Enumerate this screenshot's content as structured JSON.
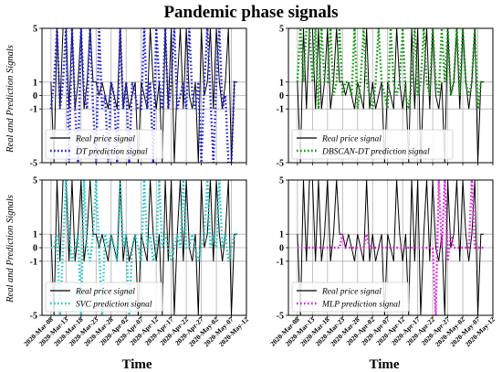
{
  "figure": {
    "title": "Pandemic phase signals",
    "ylabel": "Real and Prediction Signals",
    "xlabel": "Time"
  },
  "chart_data": {
    "type": "line",
    "x_dates": [
      "2020-03-08",
      "2020-03-09",
      "2020-03-10",
      "2020-03-11",
      "2020-03-12",
      "2020-03-13",
      "2020-03-14",
      "2020-03-15",
      "2020-03-16",
      "2020-03-17",
      "2020-03-18",
      "2020-03-19",
      "2020-03-20",
      "2020-03-21",
      "2020-03-22",
      "2020-03-23",
      "2020-03-24",
      "2020-03-25",
      "2020-03-26",
      "2020-03-27",
      "2020-03-28",
      "2020-03-29",
      "2020-03-30",
      "2020-03-31",
      "2020-04-01",
      "2020-04-02",
      "2020-04-03",
      "2020-04-04",
      "2020-04-05",
      "2020-04-06",
      "2020-04-07",
      "2020-04-08",
      "2020-04-09",
      "2020-04-10",
      "2020-04-11",
      "2020-04-12",
      "2020-04-13",
      "2020-04-14",
      "2020-04-15",
      "2020-04-16",
      "2020-04-17",
      "2020-04-18",
      "2020-04-19",
      "2020-04-20",
      "2020-04-21",
      "2020-04-22",
      "2020-04-23",
      "2020-04-24",
      "2020-04-25",
      "2020-04-26",
      "2020-04-27",
      "2020-04-28",
      "2020-04-29",
      "2020-04-30",
      "2020-05-01",
      "2020-05-02",
      "2020-05-03",
      "2020-05-04",
      "2020-05-05",
      "2020-05-06",
      "2020-05-07",
      "2020-05-08",
      "2020-05-09"
    ],
    "xtick_labels": [
      "2020-Mar-08",
      "2020-Mar-13",
      "2020-Mar-18",
      "2020-Mar-23",
      "2020-Mar-28",
      "2020-Apr-02",
      "2020-Apr-07",
      "2020-Apr-12",
      "2020-Apr-17",
      "2020-Apr-22",
      "2020-Apr-27",
      "2020-May-02",
      "2020-May-07",
      "2020-May-12"
    ],
    "xlim": [
      "2020-03-05",
      "2020-05-12"
    ],
    "ylim": [
      -5,
      5
    ],
    "yticks": [
      -5,
      -1,
      0,
      1,
      5
    ],
    "grid": true,
    "legend_position": "lower-left",
    "real_series": {
      "name": "Real price signal",
      "color": "#000000",
      "values": [
        1,
        -5,
        5,
        -1,
        5,
        5,
        -1,
        5,
        -1,
        1,
        5,
        -1,
        1,
        5,
        1,
        1,
        0,
        1,
        0,
        -1,
        1,
        0,
        -1,
        5,
        -1,
        1,
        -1,
        0,
        1,
        -5,
        1,
        0,
        -1,
        5,
        1,
        -1,
        1,
        -5,
        5,
        -1,
        5,
        -5,
        1,
        5,
        -1,
        5,
        0,
        -1,
        1,
        -5,
        5,
        0,
        1,
        5,
        -1,
        5,
        1,
        -1,
        1,
        5,
        -5,
        1,
        1
      ]
    },
    "panels": [
      {
        "id": "dt",
        "legend_label": "DT prediction signal",
        "color": "#1f1fe0",
        "values": [
          -1,
          1,
          5,
          -1,
          1,
          5,
          -5,
          5,
          -1,
          -5,
          5,
          0,
          -1,
          5,
          -1,
          -5,
          5,
          -1,
          0,
          -5,
          1,
          0,
          -5,
          5,
          -1,
          1,
          -5,
          1,
          0,
          -1,
          -1,
          5,
          -1,
          1,
          -5,
          5,
          1,
          -1,
          5,
          -1,
          1,
          5,
          -1,
          0,
          1,
          -1,
          5,
          0,
          -1,
          1,
          -5,
          1,
          5,
          0,
          -5,
          1,
          5,
          -1,
          0,
          -5,
          -5,
          1,
          1
        ]
      },
      {
        "id": "dbscan-dt",
        "legend_label": "DBSCAN-DT prediction signal",
        "color": "#119911",
        "values": [
          1,
          5,
          1,
          5,
          5,
          1,
          5,
          -1,
          5,
          1,
          1,
          5,
          0,
          1,
          5,
          0,
          1,
          1,
          0,
          5,
          -1,
          1,
          5,
          1,
          0,
          -1,
          1,
          5,
          1,
          0,
          -1,
          5,
          1,
          0,
          1,
          5,
          0,
          -1,
          1,
          5,
          0,
          1,
          5,
          1,
          0,
          5,
          1,
          0,
          5,
          1,
          5,
          0,
          1,
          5,
          0,
          5,
          1,
          0,
          1,
          5,
          -1,
          1,
          1
        ]
      },
      {
        "id": "svc",
        "legend_label": "SVC prediction signal",
        "color": "#22c8c8",
        "values": [
          0,
          0,
          1,
          -5,
          0,
          5,
          1,
          -1,
          0,
          1,
          -5,
          5,
          0,
          -1,
          1,
          5,
          0,
          -5,
          1,
          0,
          1,
          0,
          -1,
          5,
          0,
          1,
          -5,
          0,
          1,
          0,
          -1,
          5,
          0,
          1,
          -1,
          0,
          5,
          0,
          1,
          0,
          -1,
          0,
          1,
          0,
          5,
          0,
          0,
          1,
          0,
          -1,
          0,
          1,
          5,
          0,
          1,
          0,
          5,
          0,
          1,
          -1,
          0,
          1,
          1
        ]
      },
      {
        "id": "mlp",
        "legend_label": "MLP prediction signal",
        "color": "#e020e0",
        "values": [
          0,
          0,
          0,
          0,
          0,
          0,
          0,
          0,
          0,
          0,
          0,
          0,
          0,
          0,
          0,
          1,
          0,
          0,
          0,
          0,
          0,
          0,
          0,
          1,
          0,
          0,
          0,
          0,
          0,
          0,
          0,
          0,
          0,
          0,
          0,
          0,
          0,
          0,
          0,
          0,
          0,
          0,
          0,
          0,
          0,
          0,
          -5,
          5,
          0,
          5,
          -1,
          1,
          0,
          0,
          0,
          0,
          0,
          0,
          5,
          0,
          0,
          0,
          0
        ]
      }
    ]
  }
}
